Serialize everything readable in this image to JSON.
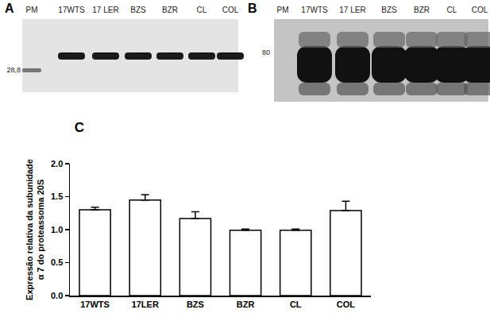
{
  "blots": [
    {
      "panel_label": "A",
      "lanes": [
        "PM",
        "17WTS",
        "17 LER",
        "BZS",
        "BZR",
        "CL",
        "COL"
      ],
      "size_label": "28,8"
    },
    {
      "panel_label": "B",
      "lanes": [
        "PM",
        "17WTS",
        "17 LER",
        "BZS",
        "BZR",
        "CL",
        "COL"
      ],
      "size_label": "80"
    }
  ],
  "chart_data": {
    "type": "bar",
    "title": "C",
    "y_label": [
      "Expressão relativa da subunidade",
      "α 7 do proteassoma 20S"
    ],
    "categories": [
      "17WTS",
      "17LER",
      "BZS",
      "BZR",
      "CL",
      "COL"
    ],
    "values": [
      1.3,
      1.45,
      1.17,
      0.99,
      0.99,
      1.29
    ],
    "errors": [
      0.04,
      0.08,
      0.1,
      0.02,
      0.02,
      0.14
    ],
    "color": "#ffffff",
    "ylim": [
      0,
      2
    ],
    "yticks": [
      {
        "value": 0,
        "label": "0.0"
      },
      0.5,
      {
        "value": 1,
        "label": "1.0"
      },
      1.5,
      {
        "value": 2,
        "label": "2.0"
      }
    ],
    "grid": false
  }
}
